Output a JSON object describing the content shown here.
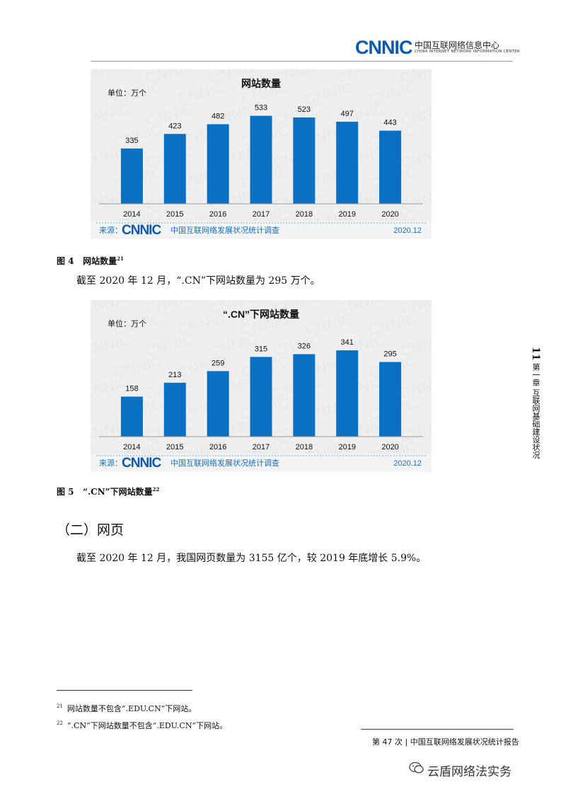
{
  "header": {
    "logo": "CNNIC",
    "org_cn": "中国互联网络信息中心",
    "org_en": "CHINA INTERNET NETWORK INFORMATION CENTER"
  },
  "chart_data": [
    {
      "type": "bar",
      "title": "网站数量",
      "unit_label": "单位：万个",
      "categories": [
        "2014",
        "2015",
        "2016",
        "2017",
        "2018",
        "2019",
        "2020"
      ],
      "values": [
        335,
        423,
        482,
        533,
        523,
        497,
        443
      ],
      "ylim": [
        0,
        600
      ],
      "bar_color": "#0b6fc4",
      "source_prefix": "来源：",
      "source_logo": "CNNIC",
      "source_text": "中国互联网络发展状况统计调查",
      "date": "2020.12",
      "watermark": "CNNIC"
    },
    {
      "type": "bar",
      "title": "“.CN”下网站数量",
      "unit_label": "单位：万个",
      "categories": [
        "2014",
        "2015",
        "2016",
        "2017",
        "2018",
        "2019",
        "2020"
      ],
      "values": [
        158,
        213,
        259,
        315,
        326,
        341,
        295
      ],
      "ylim": [
        0,
        400
      ],
      "bar_color": "#0b6fc4",
      "source_prefix": "来源：",
      "source_logo": "CNNIC",
      "source_text": "中国互联网络发展状况统计调查",
      "date": "2020.12",
      "watermark": "CNNIC"
    }
  ],
  "captions": {
    "fig4_label": "图 4",
    "fig4_text": "网站数量",
    "fig4_ref": "21",
    "fig5_label": "图 5",
    "fig5_text": "“.CN”下网站数量",
    "fig5_ref": "22"
  },
  "body": {
    "para1": "截至 2020 年 12 月，“.CN”下网站数量为 295 万个。",
    "section_heading": "（二）网页",
    "para2": "截至 2020 年 12 月，我国网页数量为 3155 亿个，较 2019 年底增长 5.9%。"
  },
  "side_tab": {
    "page_number": "11",
    "chapter": "第一章  互联网基础建设状况"
  },
  "footnotes": [
    {
      "ref": "21",
      "text": "网站数量不包含“.EDU.CN”下网站。"
    },
    {
      "ref": "22",
      "text": "“.CN”下网站数量不包含“.EDU.CN”下网站。"
    }
  ],
  "footer": {
    "text": "第 47 次 | 中国互联网络发展状况统计报告"
  },
  "watermark": {
    "text": "云盾网络法实务",
    "icon": "wechat-icon"
  }
}
